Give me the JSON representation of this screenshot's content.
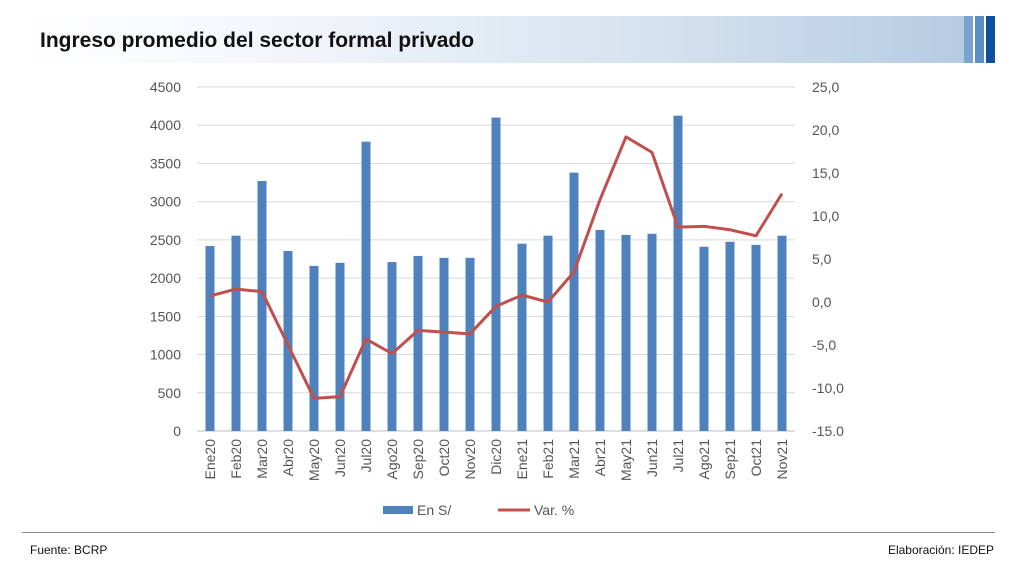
{
  "header": {
    "title": "Ingreso promedio del sector formal privado"
  },
  "footer": {
    "source": "Fuente:  BCRP",
    "credit": "Elaboración: IEDEP"
  },
  "colors": {
    "bar": "#4f81bd",
    "line": "#c0504d"
  },
  "chart_data": {
    "type": "bar+line",
    "title": "Ingreso promedio del sector formal privado",
    "categories": [
      "Ene20",
      "Feb20",
      "Mar20",
      "Abr20",
      "May20",
      "Jun20",
      "Jul20",
      "Ago20",
      "Sep20",
      "Oct20",
      "Nov20",
      "Dic20",
      "Ene21",
      "Feb21",
      "Mar21",
      "Abr21",
      "May21",
      "Jun21",
      "Jul21",
      "Ago21",
      "Sep21",
      "Oct21",
      "Nov21"
    ],
    "series": [
      {
        "name": "En S/",
        "type": "bar",
        "axis": "left",
        "values": [
          2420,
          2555,
          3270,
          2355,
          2160,
          2200,
          3785,
          2210,
          2290,
          2265,
          2265,
          4100,
          2450,
          2555,
          3380,
          2630,
          2565,
          2580,
          4125,
          2410,
          2475,
          2435,
          2555
        ]
      },
      {
        "name": "Var. %",
        "type": "line",
        "axis": "right",
        "values": [
          0.7,
          1.5,
          1.2,
          -5.0,
          -11.2,
          -11.0,
          -4.3,
          -6.0,
          -3.3,
          -3.5,
          -3.7,
          -0.5,
          0.8,
          0.0,
          3.5,
          11.9,
          19.2,
          17.4,
          8.7,
          8.8,
          8.4,
          7.7,
          12.6
        ]
      }
    ],
    "ylim_left": [
      0,
      4500
    ],
    "yticks_left": [
      "0",
      "500",
      "1000",
      "1500",
      "2000",
      "2500",
      "3000",
      "3500",
      "4000",
      "4500"
    ],
    "ylim_right": [
      -15,
      25
    ],
    "yticks_right": [
      "-15.0",
      "-10,0",
      "-5,0",
      "0,0",
      "5,0",
      "10,0",
      "15,0",
      "20,0",
      "25,0"
    ],
    "legend": [
      "En S/",
      "Var. %"
    ],
    "legend_position": "bottom",
    "grid": true
  }
}
